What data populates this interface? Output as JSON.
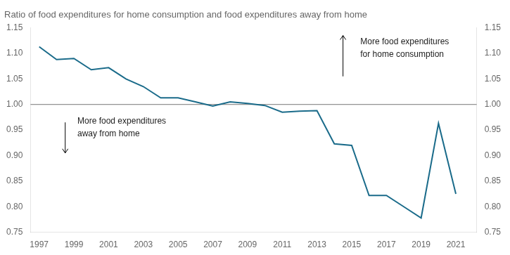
{
  "chart_data": {
    "type": "line",
    "title": "Ratio of food expenditures for home consumption and food expenditures away from home",
    "x": [
      1997,
      1998,
      1999,
      2000,
      2001,
      2002,
      2003,
      2004,
      2005,
      2006,
      2007,
      2008,
      2009,
      2010,
      2011,
      2012,
      2013,
      2014,
      2015,
      2016,
      2017,
      2018,
      2019,
      2020,
      2021
    ],
    "values": [
      1.113,
      1.088,
      1.09,
      1.068,
      1.072,
      1.05,
      1.035,
      1.013,
      1.013,
      1.005,
      0.997,
      1.005,
      1.002,
      0.998,
      0.985,
      0.987,
      0.988,
      0.923,
      0.92,
      0.822,
      0.822,
      0.8,
      0.778,
      0.963,
      0.825
    ],
    "color": "#1a6b8a",
    "xlim": [
      1996.5,
      2022.2
    ],
    "xticks": [
      1997,
      1999,
      2001,
      2003,
      2005,
      2007,
      2009,
      2011,
      2013,
      2015,
      2017,
      2019,
      2021
    ],
    "ylim": [
      0.75,
      1.15
    ],
    "yticks": [
      0.75,
      {
        "value": 0.8,
        "label": "0.80"
      },
      0.85,
      {
        "value": 0.9,
        "label": "0.90"
      },
      0.95,
      {
        "value": 1.0,
        "label": "1.00"
      },
      1.05,
      {
        "value": 1.1,
        "label": "1.10"
      },
      1.15
    ],
    "y2lim": [
      0.75,
      1.15
    ],
    "y2ticks": [
      0.75,
      {
        "value": 0.8,
        "label": "0.80"
      },
      0.85,
      {
        "value": 0.9,
        "label": "0.90"
      },
      0.95,
      {
        "value": 1.0,
        "label": "1.00"
      },
      1.05,
      {
        "value": 1.1,
        "label": "1.10"
      },
      1.15
    ],
    "reference_lines": [
      {
        "y": 1.0,
        "color": "#777777"
      }
    ],
    "annotations": [
      {
        "text": "More food expenditures\nfor home consumption",
        "x": 2015.5,
        "y": 1.13,
        "arrow_x": 2014.5,
        "arrow_from": 1.055,
        "arrow_to": 1.135
      },
      {
        "text": "More food expenditures\naway from home",
        "x": 1999.2,
        "y": 0.975,
        "arrow_x": 1998.5,
        "arrow_from": 0.965,
        "arrow_to": 0.905
      }
    ],
    "grid": false
  }
}
